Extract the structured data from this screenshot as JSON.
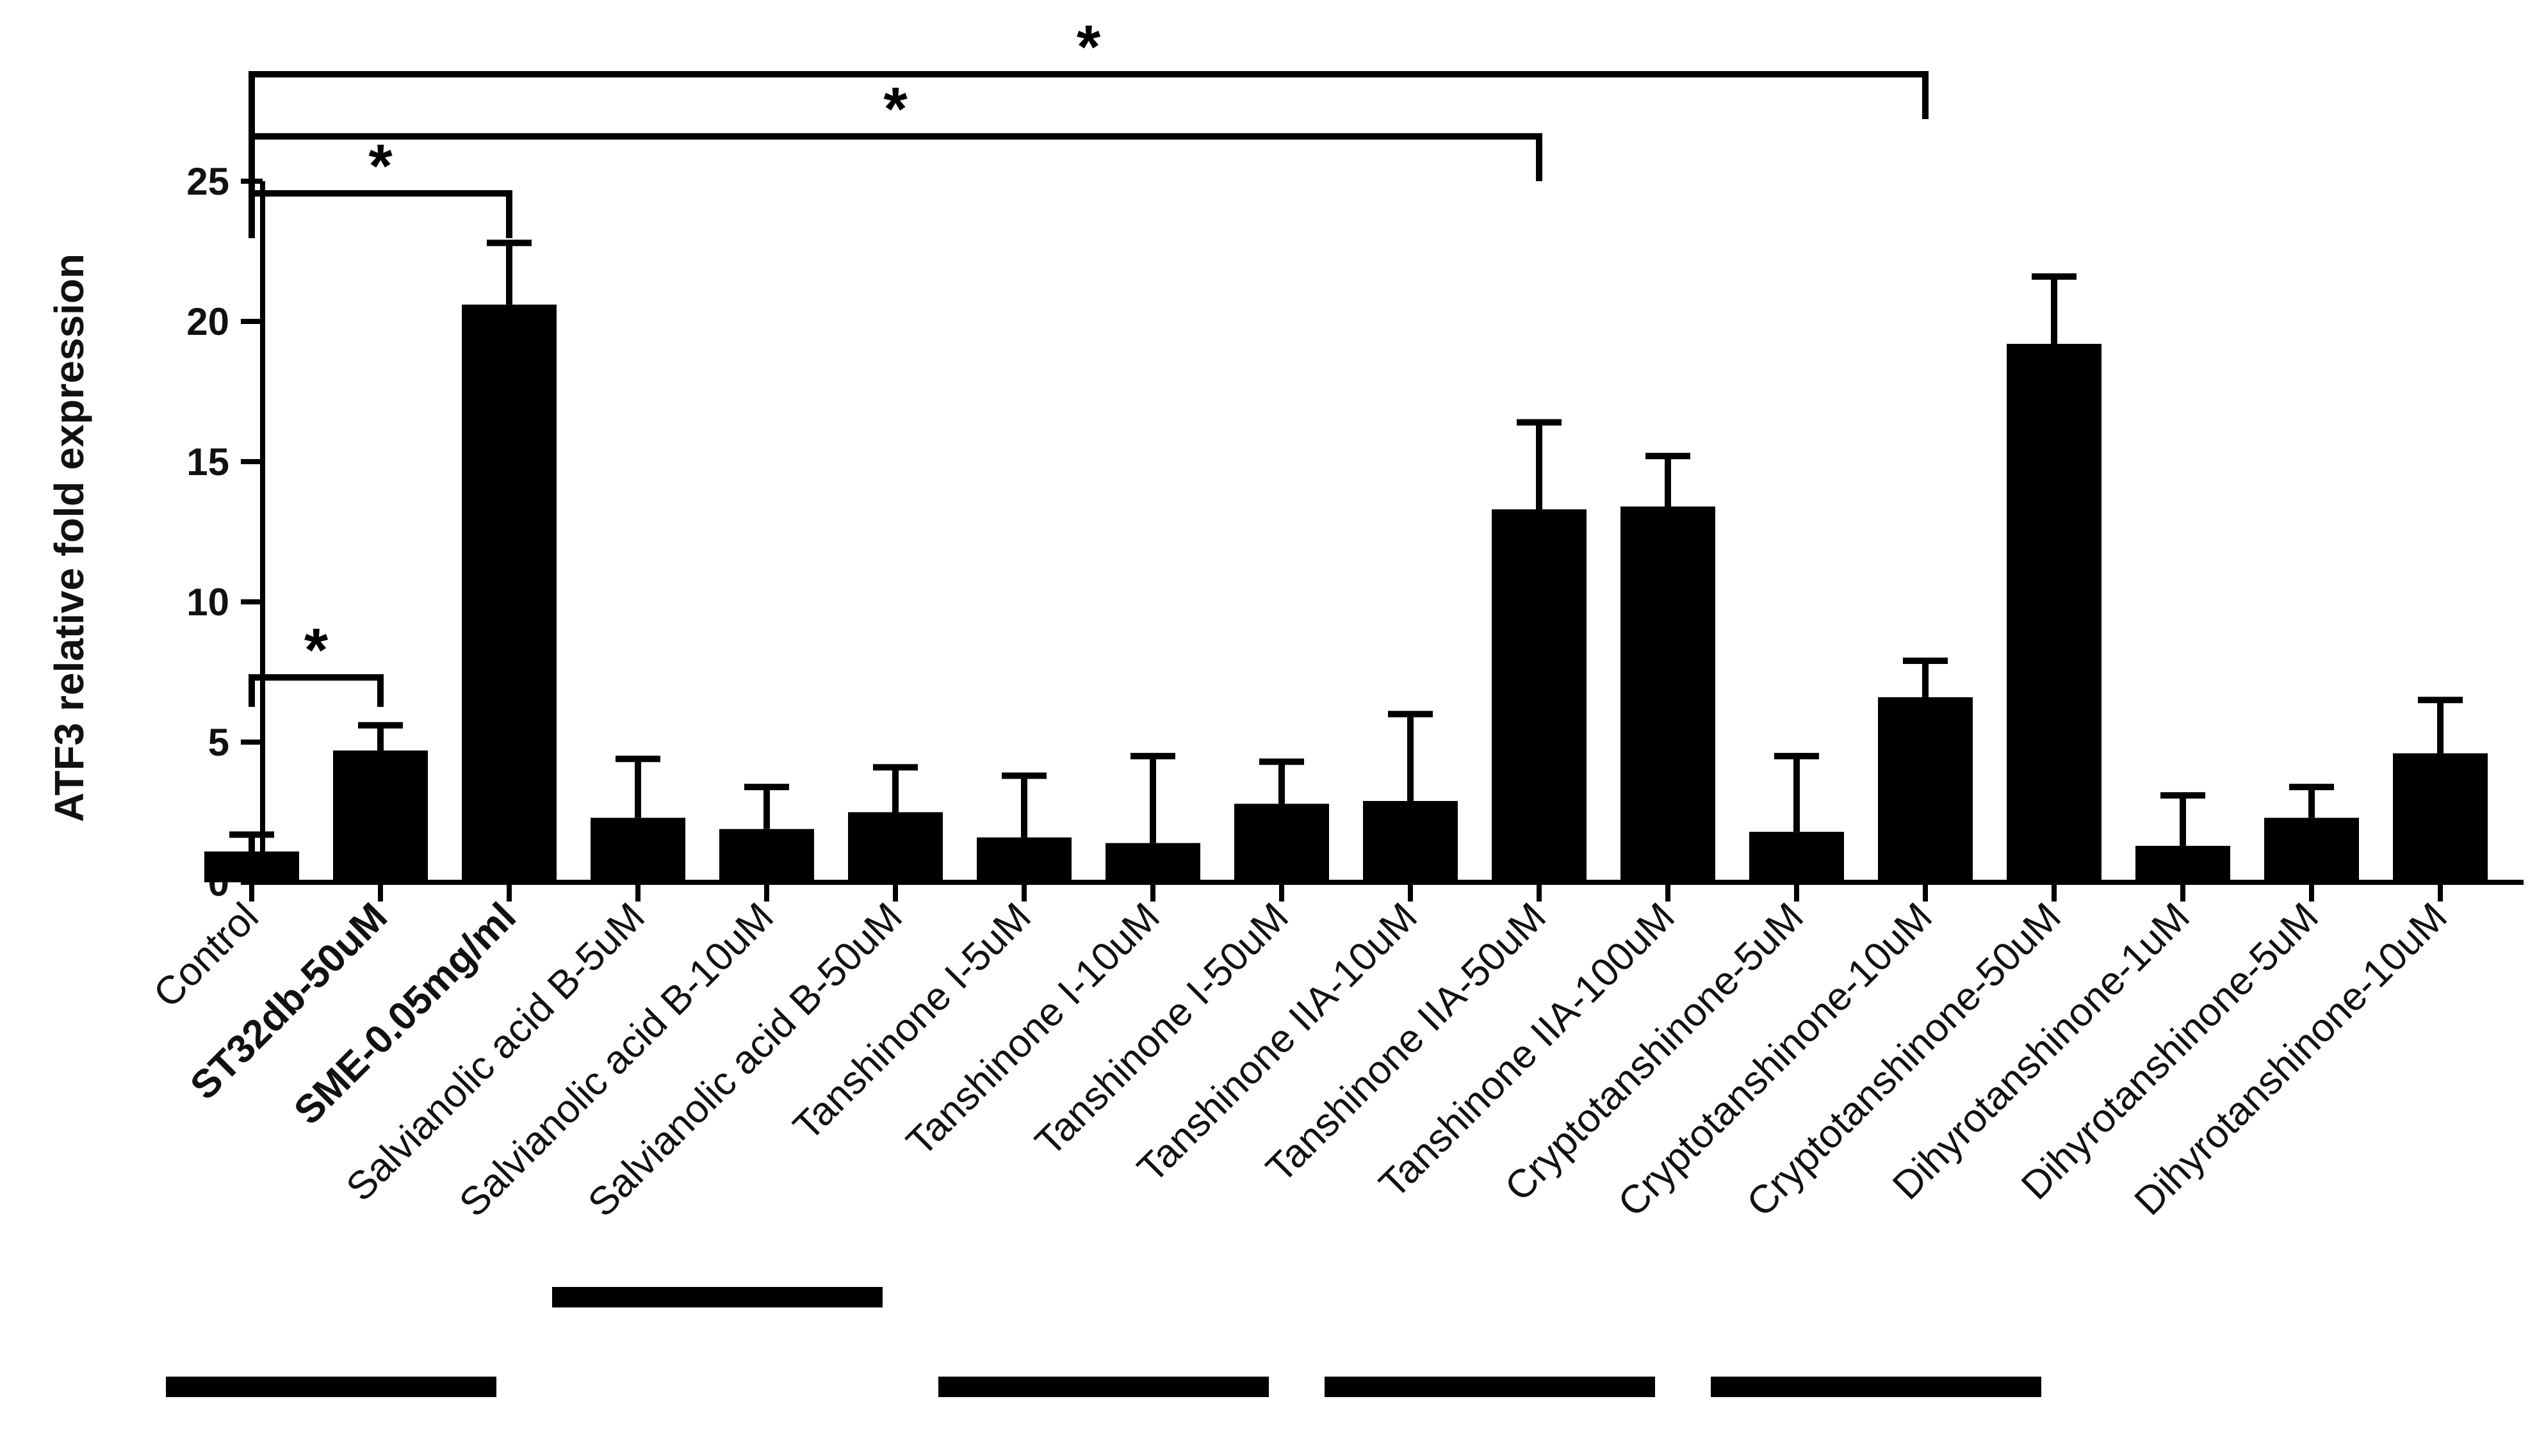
{
  "chart_data": {
    "type": "bar",
    "title": "",
    "xlabel": "",
    "ylabel": "ATF3 relative fold expression",
    "ylim": [
      0,
      25
    ],
    "yticks": [
      0,
      5,
      10,
      15,
      20,
      25
    ],
    "grid": false,
    "legend": "none",
    "bar_color": "#000000",
    "categories": [
      "Control",
      "ST32db-50uM",
      "SME-0.05mg/ml",
      "Salvianolic acid B-5uM",
      "Salvianolic acid B-10uM",
      "Salvianolic acid B-50uM",
      "Tanshinone I-5uM",
      "Tanshinone I-10uM",
      "Tanshinone I-50uM",
      "Tanshinone IIA-10uM",
      "Tanshinone IIA-50uM",
      "Tanshinone IIA-100uM",
      "Cryptotanshinone-5uM",
      "Cryptotanshinone-10uM",
      "Cryptotanshinone-50uM",
      "Dihyrotanshinone-1uM",
      "Dihyrotanshinone-5uM",
      "Dihyrotanshinone-10uM"
    ],
    "bold_categories": [
      1,
      2
    ],
    "values": [
      1.1,
      4.7,
      20.6,
      2.3,
      1.9,
      2.5,
      1.6,
      1.4,
      2.8,
      2.9,
      13.3,
      13.4,
      1.8,
      6.6,
      19.2,
      1.3,
      2.3,
      4.6
    ],
    "error": [
      0.6,
      0.9,
      2.2,
      2.1,
      1.5,
      1.6,
      2.2,
      3.1,
      1.5,
      3.1,
      3.1,
      1.8,
      2.7,
      1.3,
      2.4,
      1.8,
      1.1,
      1.9
    ],
    "significance": [
      {
        "from": 0,
        "to": 1,
        "label": "*"
      },
      {
        "from": 0,
        "to": 2,
        "label": "*"
      },
      {
        "from": 0,
        "to": 10,
        "label": "*"
      },
      {
        "from": 0,
        "to": 13,
        "label": "*"
      }
    ],
    "group_lines": [
      {
        "start": 0,
        "end": 2
      },
      {
        "start": 3,
        "end": 5
      },
      {
        "start": 6,
        "end": 8
      },
      {
        "start": 9,
        "end": 11
      },
      {
        "start": 12,
        "end": 14
      }
    ]
  }
}
